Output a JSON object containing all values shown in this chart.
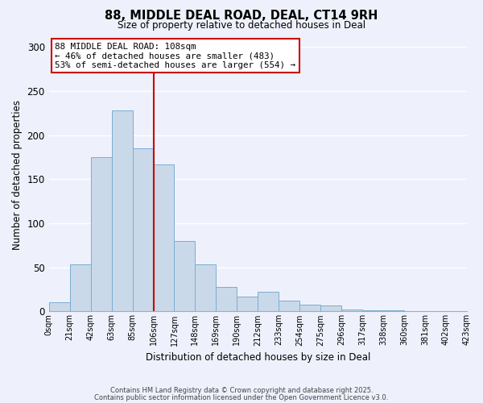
{
  "title": "88, MIDDLE DEAL ROAD, DEAL, CT14 9RH",
  "subtitle": "Size of property relative to detached houses in Deal",
  "xlabel": "Distribution of detached houses by size in Deal",
  "ylabel": "Number of detached properties",
  "bar_values": [
    10,
    53,
    175,
    228,
    185,
    167,
    80,
    53,
    28,
    17,
    22,
    12,
    8,
    7,
    2,
    1,
    1,
    0,
    0,
    0
  ],
  "bin_labels": [
    "0sqm",
    "21sqm",
    "42sqm",
    "63sqm",
    "85sqm",
    "106sqm",
    "127sqm",
    "148sqm",
    "169sqm",
    "190sqm",
    "212sqm",
    "233sqm",
    "254sqm",
    "275sqm",
    "296sqm",
    "317sqm",
    "338sqm",
    "360sqm",
    "381sqm",
    "402sqm",
    "423sqm"
  ],
  "bar_color": "#c9d9ea",
  "bar_edge_color": "#7aadd0",
  "reference_line_x": 5,
  "reference_line_color": "#cc0000",
  "annotation_title": "88 MIDDLE DEAL ROAD: 108sqm",
  "annotation_line1": "← 46% of detached houses are smaller (483)",
  "annotation_line2": "53% of semi-detached houses are larger (554) →",
  "annotation_box_color": "#ffffff",
  "annotation_box_edge": "#cc0000",
  "ylim": [
    0,
    310
  ],
  "background_color": "#eef1fb",
  "grid_color": "#ffffff",
  "footer1": "Contains HM Land Registry data © Crown copyright and database right 2025.",
  "footer2": "Contains public sector information licensed under the Open Government Licence v3.0."
}
